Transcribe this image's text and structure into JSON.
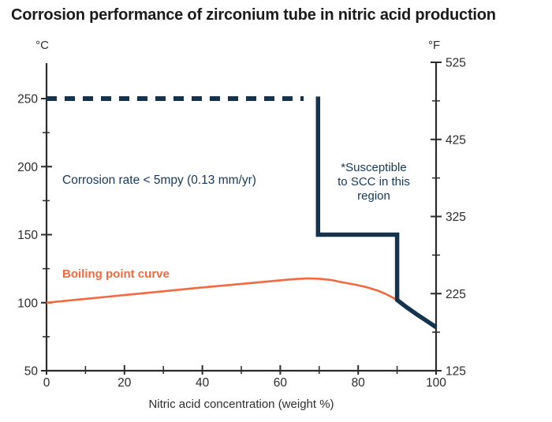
{
  "colors": {
    "navy": "#14334F",
    "orange": "#F4693F",
    "axis": "#2B2B2B",
    "tick_label": "#2B2B2B",
    "annotation_text": "#16385A",
    "title_text": "#1B1B1B"
  },
  "chart_data": {
    "type": "line",
    "title": "Corrosion performance of zirconium tube in nitric acid production",
    "xlabel": "Nitric acid concentration (weight %)",
    "grid": false,
    "x_axis": {
      "min": 0,
      "max": 100,
      "major_ticks": [
        0,
        20,
        40,
        60,
        80,
        100
      ],
      "minor_ticks": [
        10,
        30,
        50,
        70,
        90
      ]
    },
    "y_left": {
      "unit": "°C",
      "min": 50,
      "max": 250,
      "major_ticks": [
        50,
        100,
        150,
        200,
        250
      ],
      "minor_ticks": [
        75,
        125,
        175,
        225
      ]
    },
    "y_right": {
      "unit": "°F",
      "min": 125,
      "max": 525,
      "major_ticks": [
        125,
        225,
        325,
        425,
        525
      ],
      "minor_ticks": [
        175,
        275,
        375,
        475
      ]
    },
    "series": [
      {
        "name": "corrosion-limit-dashed",
        "style": "dashed",
        "color": "#14334F",
        "width": 6,
        "points": [
          [
            0,
            250
          ],
          [
            66,
            250
          ]
        ]
      },
      {
        "name": "corrosion-limit-solid",
        "style": "solid",
        "color": "#14334F",
        "width": 5.5,
        "points": [
          [
            69.7,
            251.5
          ],
          [
            69.7,
            150
          ],
          [
            90,
            150
          ],
          [
            90,
            102
          ],
          [
            92.5,
            96.5
          ],
          [
            95,
            91.5
          ],
          [
            97.5,
            86.8
          ],
          [
            100,
            82
          ]
        ]
      },
      {
        "name": "boiling-point-curve",
        "style": "solid",
        "color": "#F4693F",
        "width": 2.6,
        "points": [
          [
            0,
            100
          ],
          [
            5,
            101.4
          ],
          [
            10,
            102.8
          ],
          [
            15,
            104.2
          ],
          [
            20,
            105.6
          ],
          [
            25,
            107
          ],
          [
            30,
            108.4
          ],
          [
            35,
            109.8
          ],
          [
            40,
            111.2
          ],
          [
            45,
            112.5
          ],
          [
            50,
            113.8
          ],
          [
            55,
            115.1
          ],
          [
            58,
            115.9
          ],
          [
            61,
            116.7
          ],
          [
            64,
            117.4
          ],
          [
            67,
            117.8
          ],
          [
            70,
            117.6
          ],
          [
            73,
            116.7
          ],
          [
            76,
            114.9
          ],
          [
            79,
            113.4
          ],
          [
            82,
            111.5
          ],
          [
            85,
            108.9
          ],
          [
            87,
            106.5
          ],
          [
            89,
            103.5
          ],
          [
            90,
            102
          ]
        ]
      }
    ],
    "annotations": {
      "corrosion_rate": "Corrosion rate < 5mpy (0.13 mm/yr)",
      "scc_region": "*Susceptible\nto SCC in this\nregion",
      "boiling_label": "Boiling point curve"
    }
  }
}
